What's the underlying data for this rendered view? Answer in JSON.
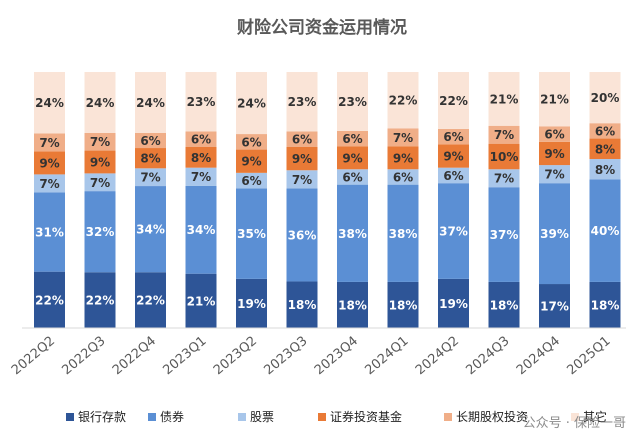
{
  "chart_data": {
    "type": "bar",
    "stacked": true,
    "percent": true,
    "title": "财险公司资金运用情况",
    "categories": [
      "2022Q2",
      "2022Q3",
      "2022Q4",
      "2023Q1",
      "2023Q2",
      "2023Q3",
      "2023Q4",
      "2024Q1",
      "2024Q2",
      "2024Q3",
      "2024Q4",
      "2025Q1"
    ],
    "series": [
      {
        "name": "银行存款",
        "color": "#2e5597",
        "label_color": "#ffffff",
        "values": [
          22,
          22,
          22,
          21,
          19,
          18,
          18,
          18,
          19,
          18,
          17,
          18
        ]
      },
      {
        "name": "债券",
        "color": "#5b8fd4",
        "label_color": "#ffffff",
        "values": [
          31,
          32,
          34,
          34,
          35,
          36,
          38,
          38,
          37,
          37,
          39,
          40
        ]
      },
      {
        "name": "股票",
        "color": "#a8c6ea",
        "label_color": "#333333",
        "values": [
          7,
          7,
          7,
          7,
          6,
          7,
          6,
          6,
          6,
          7,
          7,
          8
        ]
      },
      {
        "name": "证券投资基金",
        "color": "#e97a36",
        "label_color": "#333333",
        "values": [
          9,
          9,
          8,
          8,
          9,
          9,
          9,
          9,
          9,
          10,
          9,
          8
        ]
      },
      {
        "name": "长期股权投资",
        "color": "#f0ae88",
        "label_color": "#333333",
        "values": [
          7,
          7,
          6,
          6,
          6,
          6,
          6,
          7,
          6,
          7,
          6,
          6
        ]
      },
      {
        "name": "其它",
        "color": "#fae4d7",
        "label_color": "#333333",
        "values": [
          24,
          24,
          24,
          23,
          24,
          23,
          23,
          22,
          22,
          21,
          21,
          20
        ]
      }
    ],
    "ylim": [
      0,
      100
    ],
    "legend": "bottom",
    "grid": false
  },
  "watermark": "公众号 · 保险一哥"
}
